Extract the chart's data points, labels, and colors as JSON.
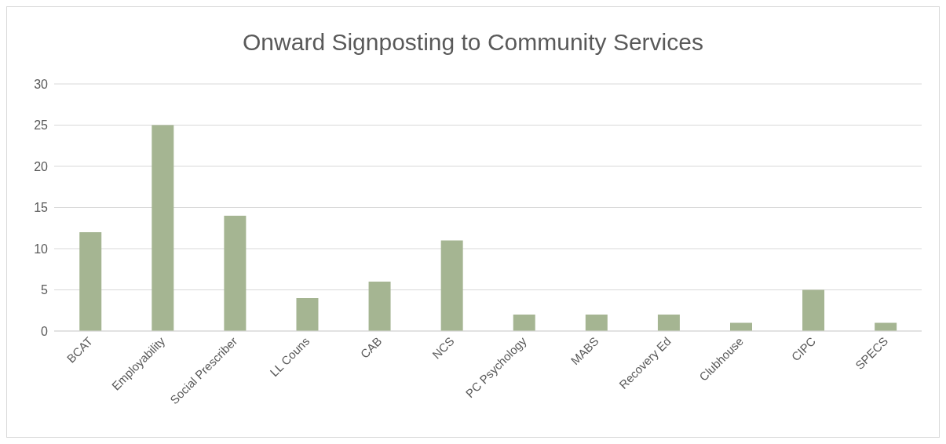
{
  "chart_data": {
    "type": "bar",
    "title": "Onward Signposting to Community Services",
    "categories": [
      "BCAT",
      "Employability",
      "Social Prescriber",
      "LL Couns",
      "CAB",
      "NCS",
      "PC Psychology",
      "MABS",
      "Recovery Ed",
      "Clubhouse",
      "CIPC",
      "SPECS"
    ],
    "values": [
      12,
      25,
      14,
      4,
      6,
      11,
      2,
      2,
      2,
      1,
      5,
      1
    ],
    "color": "#a5b592",
    "ylim": [
      0,
      30
    ],
    "yticks": [
      0,
      5,
      10,
      15,
      20,
      25,
      30
    ],
    "grid": "y",
    "legend": false
  }
}
